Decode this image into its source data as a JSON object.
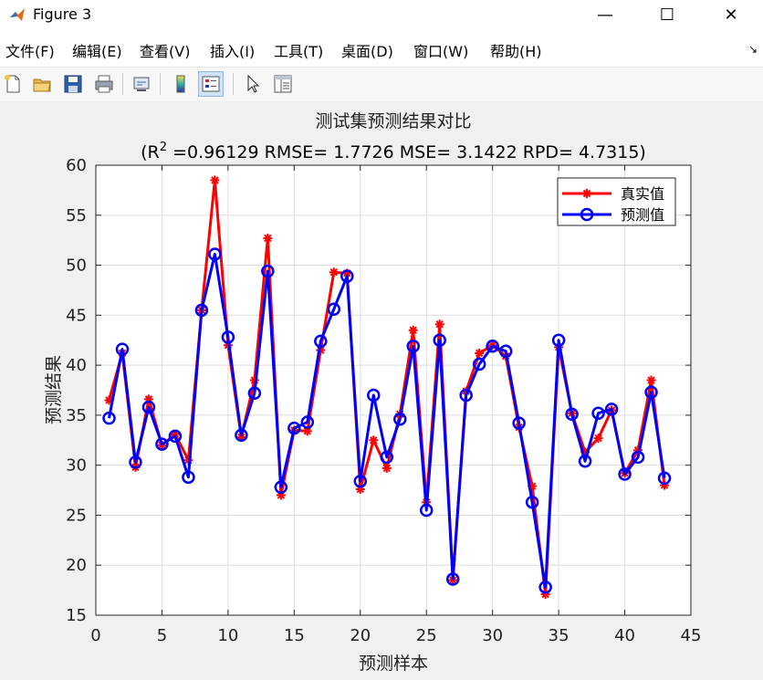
{
  "window": {
    "title": "Figure 3",
    "minimize": "—",
    "maximize": "☐",
    "close": "✕"
  },
  "menu": {
    "items": [
      "文件(F)",
      "编辑(E)",
      "查看(V)",
      "插入(I)",
      "工具(T)",
      "桌面(D)",
      "窗口(W)",
      "帮助(H)"
    ],
    "overflow": "↘"
  },
  "toolbar": {
    "buttons": [
      "new-figure-icon",
      "open-file-icon",
      "save-icon",
      "print-icon",
      "link-icon",
      "colorbar-icon",
      "legend-icon",
      "pointer-icon",
      "property-inspector-icon"
    ]
  },
  "chart_data": {
    "type": "line",
    "title": "测试集预测结果对比",
    "subtitle_parts": {
      "prefix": "(R",
      "sup": "2",
      "rest": " =0.96129 RMSE= 1.7726 MSE= 3.1422 RPD= 4.7315)"
    },
    "xlabel": "预测样本",
    "ylabel": "预测结果",
    "xlim": [
      0,
      45
    ],
    "ylim": [
      15,
      60
    ],
    "xticks": [
      0,
      5,
      10,
      15,
      20,
      25,
      30,
      35,
      40,
      45
    ],
    "yticks": [
      15,
      20,
      25,
      30,
      35,
      40,
      45,
      50,
      55,
      60
    ],
    "grid": true,
    "legend_position": "top-right",
    "x": [
      1,
      2,
      3,
      4,
      5,
      6,
      7,
      8,
      9,
      10,
      11,
      12,
      13,
      14,
      15,
      16,
      17,
      18,
      19,
      20,
      21,
      22,
      23,
      24,
      25,
      26,
      27,
      28,
      29,
      30,
      31,
      32,
      33,
      34,
      35,
      36,
      37,
      38,
      39,
      40,
      41,
      42,
      43
    ],
    "series": [
      {
        "name": "真实值",
        "color": "#ff0000",
        "marker": "asterisk",
        "values": [
          36.5,
          41.2,
          29.8,
          36.6,
          32.0,
          33.1,
          30.5,
          45.5,
          58.5,
          42.0,
          32.8,
          38.5,
          52.7,
          27.0,
          33.5,
          33.4,
          41.5,
          49.3,
          49.2,
          27.6,
          32.5,
          29.7,
          35.1,
          43.5,
          26.3,
          44.1,
          18.5,
          37.4,
          41.2,
          42.0,
          40.9,
          33.8,
          27.9,
          17.1,
          41.8,
          35.2,
          31.3,
          32.7,
          35.5,
          29.2,
          31.5,
          38.5,
          28.0
        ]
      },
      {
        "name": "预测值",
        "color": "#0000ff",
        "marker": "circle",
        "values": [
          34.7,
          41.6,
          30.3,
          35.8,
          32.1,
          32.9,
          28.8,
          45.5,
          51.1,
          42.8,
          33.0,
          37.2,
          49.4,
          27.8,
          33.7,
          34.3,
          42.4,
          45.6,
          48.9,
          28.4,
          37.0,
          30.8,
          34.6,
          41.9,
          25.5,
          42.5,
          18.6,
          37.0,
          40.1,
          41.9,
          41.4,
          34.2,
          26.3,
          17.8,
          42.5,
          35.1,
          30.4,
          35.2,
          35.6,
          29.1,
          30.8,
          37.3,
          28.7
        ]
      }
    ]
  }
}
